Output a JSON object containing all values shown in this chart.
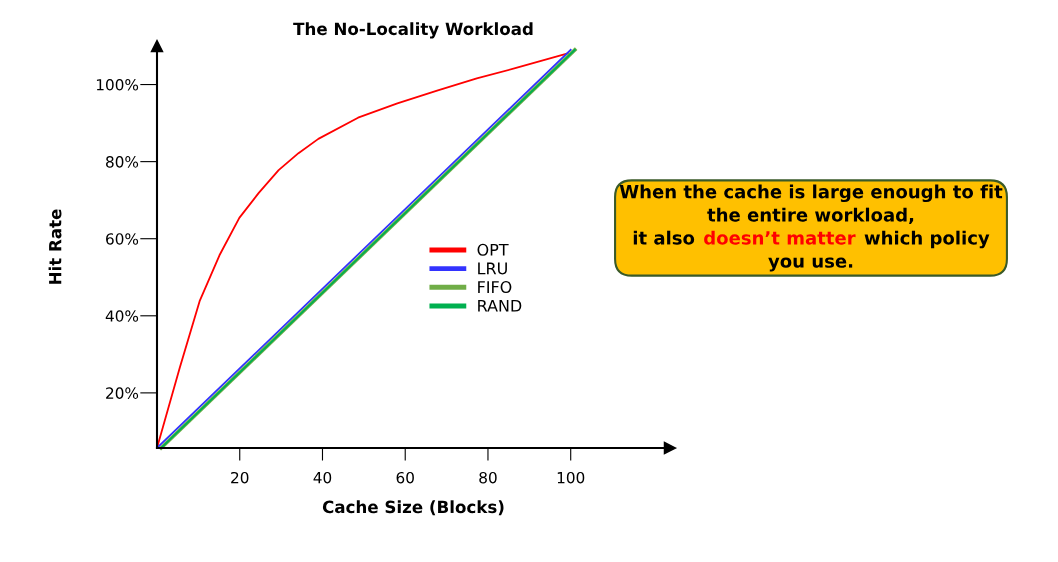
{
  "chart_data": {
    "type": "line",
    "title": "The No-Locality Workload",
    "xlabel": "Cache Size (Blocks)",
    "ylabel": "Hit Rate",
    "xlim": [
      0,
      124
    ],
    "ylim": [
      5.7,
      110
    ],
    "xticks": [
      20,
      40,
      60,
      80,
      100
    ],
    "yticks": [
      {
        "value": 20,
        "label": "20%"
      },
      {
        "value": 40,
        "label": "40%"
      },
      {
        "value": 60,
        "label": "60%"
      },
      {
        "value": 80,
        "label": "80%"
      },
      {
        "value": 100,
        "label": "100%"
      }
    ],
    "grid": false,
    "legend": "right",
    "marker": "none",
    "line_style": "solid",
    "series": [
      {
        "name": "OPT",
        "color": "#ff0000",
        "x": [
          0,
          5.5,
          10.3,
          15.1,
          19.9,
          24.6,
          29.4,
          34.2,
          39.0,
          48.6,
          58.1,
          67.7,
          77.3,
          86.8,
          99.3
        ],
        "values": [
          5.7,
          26.5,
          43.8,
          55.7,
          65.4,
          71.9,
          77.8,
          82.2,
          85.9,
          91.4,
          95.1,
          98.4,
          101.6,
          104.3,
          108.1
        ]
      },
      {
        "name": "LRU",
        "color": "#3333ff",
        "x": [
          0,
          100
        ],
        "values": [
          5.7,
          109
        ]
      },
      {
        "name": "FIFO",
        "color": "#70ad47",
        "x": [
          1,
          101
        ],
        "values": [
          5.7,
          109
        ]
      },
      {
        "name": "RAND",
        "color": "#00b050",
        "x": [
          1,
          101
        ],
        "values": [
          5.7,
          109
        ]
      }
    ],
    "annotations": [
      "When the cache is large enough to fit",
      "the entire workload,",
      "it also",
      "doesn’t matter",
      "which policy",
      "you use."
    ]
  }
}
